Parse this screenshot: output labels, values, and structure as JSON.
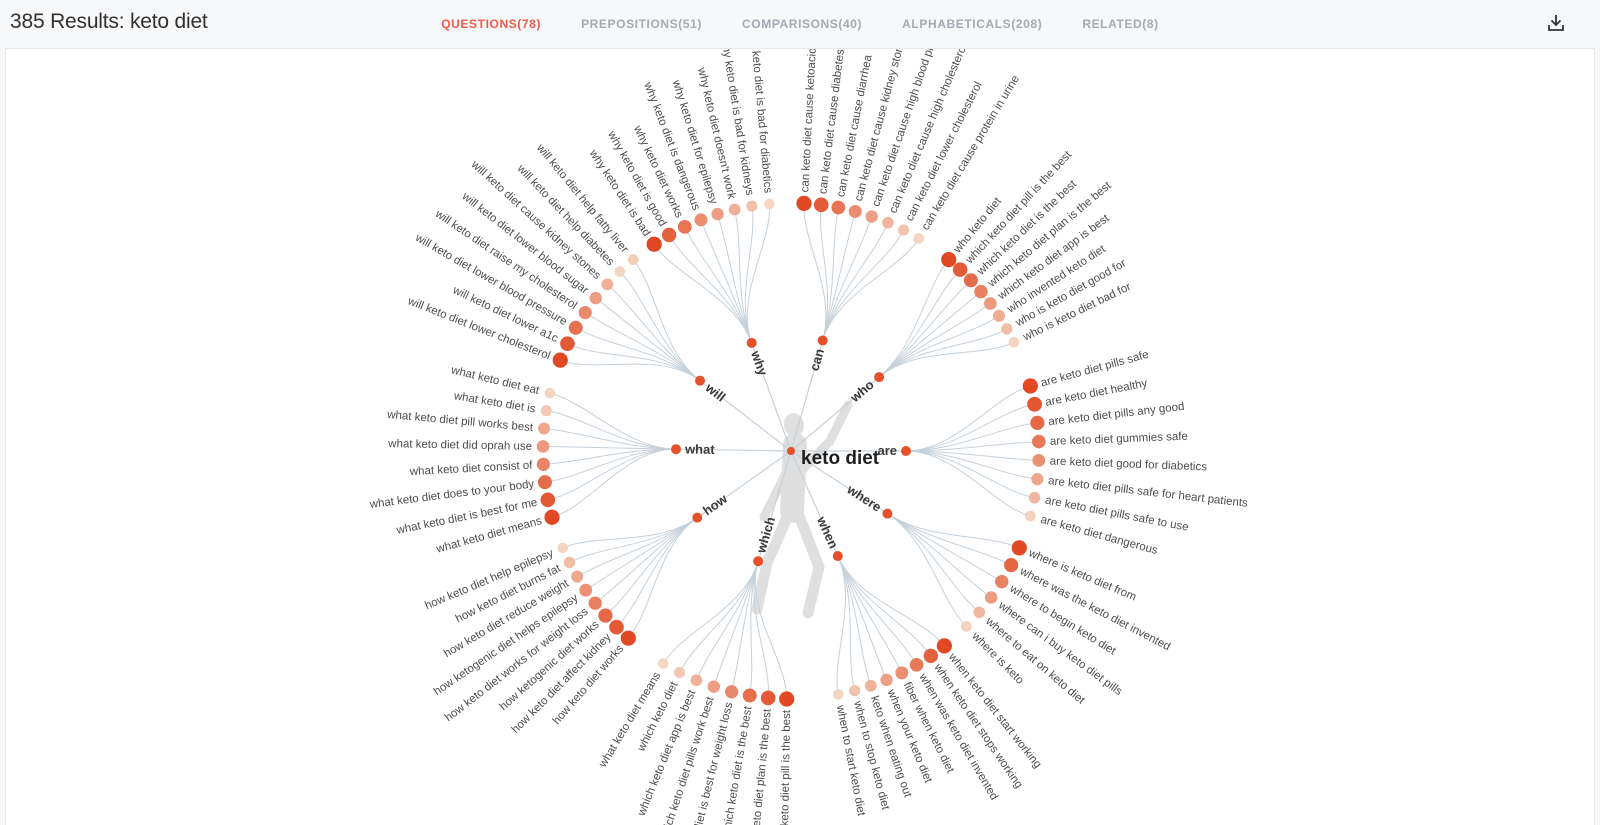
{
  "header": {
    "results_label": "385 Results:",
    "query": "keto diet",
    "tabs": [
      {
        "label": "QUESTIONS(78)",
        "active": true
      },
      {
        "label": "PREPOSITIONS(51)",
        "active": false
      },
      {
        "label": "COMPARISONS(40)",
        "active": false
      },
      {
        "label": "ALPHABETICALS(208)",
        "active": false
      },
      {
        "label": "RELATED(8)",
        "active": false
      }
    ],
    "download_icon": "download-icon"
  },
  "colors": {
    "active_tab": "#ef584a",
    "inactive_tab": "#a2aab2",
    "line": "#c5d1db",
    "dot_dark": "#e04923",
    "dot_light": "#f7e8d6",
    "node_dot": "#e5512a",
    "silhouette": "#dcdcdc"
  },
  "chart_data": {
    "type": "radial-keyword-wheel",
    "center_label": "keto diet",
    "branches": [
      {
        "label": "will",
        "angle": -142.3,
        "start": -158.5,
        "end": -129.5,
        "leaves": [
          {
            "label": "will keto diet lower cholesterol",
            "weight": 1.0
          },
          {
            "label": "will keto diet lower a1c",
            "weight": 0.9
          },
          {
            "label": "will keto diet lower blood pressure",
            "weight": 0.75
          },
          {
            "label": "will keto diet raise my cholesterol",
            "weight": 0.6
          },
          {
            "label": "will keto diet lower blood sugar",
            "weight": 0.48
          },
          {
            "label": "will keto diet cause kidney stones",
            "weight": 0.35
          },
          {
            "label": "will keto diet help diabetes",
            "weight": 0.12
          },
          {
            "label": "will keto diet help fatty liver",
            "weight": 0.16
          }
        ]
      },
      {
        "label": "why",
        "angle": -110,
        "start": -123.5,
        "end": -95,
        "leaves": [
          {
            "label": "why keto diet is bad",
            "weight": 1.0
          },
          {
            "label": "why keto diet is good",
            "weight": 0.85
          },
          {
            "label": "why keto diet works",
            "weight": 0.72
          },
          {
            "label": "why keto diet is dangerous",
            "weight": 0.58
          },
          {
            "label": "why keto diet for epilepsy",
            "weight": 0.46
          },
          {
            "label": "why keto diet doesn't work",
            "weight": 0.36
          },
          {
            "label": "why keto diet is bad for kidneys",
            "weight": 0.24
          },
          {
            "label": "why keto diet is bad for diabetics",
            "weight": 0.1
          }
        ]
      },
      {
        "label": "can",
        "angle": -74,
        "start": -87,
        "end": -59,
        "leaves": [
          {
            "label": "can keto diet cause ketoacidosis",
            "weight": 1.0
          },
          {
            "label": "can keto diet cause diabetes",
            "weight": 0.88
          },
          {
            "label": "can keto diet cause diarrhea",
            "weight": 0.72
          },
          {
            "label": "can keto diet cause kidney stones",
            "weight": 0.58
          },
          {
            "label": "can keto diet cause high blood pressure",
            "weight": 0.45
          },
          {
            "label": "can keto diet cause high cholesterol",
            "weight": 0.32
          },
          {
            "label": "can keto diet lower cholesterol",
            "weight": 0.22
          },
          {
            "label": "can keto diet cause protein in urine",
            "weight": 0.12
          }
        ]
      },
      {
        "label": "who",
        "angle": -40,
        "start": -50.5,
        "end": -26,
        "leaves": [
          {
            "label": "who keto diet",
            "weight": 1.0
          },
          {
            "label": "which keto diet pill is the best",
            "weight": 0.88
          },
          {
            "label": "which keto diet is the best",
            "weight": 0.78
          },
          {
            "label": "which keto diet plan is the best",
            "weight": 0.64
          },
          {
            "label": "which keto diet app is best",
            "weight": 0.5
          },
          {
            "label": "who invented keto diet",
            "weight": 0.38
          },
          {
            "label": "who is keto diet good for",
            "weight": 0.26
          },
          {
            "label": "who is keto diet bad for",
            "weight": 0.12
          }
        ]
      },
      {
        "label": "are",
        "angle": 0,
        "start": -15.2,
        "end": 15.2,
        "leaves": [
          {
            "label": "are keto diet pills safe",
            "weight": 1.0
          },
          {
            "label": "are keto diet healthy",
            "weight": 0.92
          },
          {
            "label": "are keto diet pills any good",
            "weight": 0.8
          },
          {
            "label": "are keto diet gummies safe",
            "weight": 0.7
          },
          {
            "label": "are keto diet good for diabetics",
            "weight": 0.55
          },
          {
            "label": "are keto diet pills safe for heart patients",
            "weight": 0.42
          },
          {
            "label": "are keto diet pills safe to use",
            "weight": 0.3
          },
          {
            "label": "are keto diet dangerous",
            "weight": 0.14
          }
        ]
      },
      {
        "label": "where",
        "angle": 33,
        "start": 23,
        "end": 45,
        "leaves": [
          {
            "label": "where is keto diet from",
            "weight": 1.0
          },
          {
            "label": "where was the keto diet invented",
            "weight": 0.82
          },
          {
            "label": "where to begin keto diet",
            "weight": 0.65
          },
          {
            "label": "where can i buy keto diet pills",
            "weight": 0.48
          },
          {
            "label": "where to eat on keto diet",
            "weight": 0.3
          },
          {
            "label": "where is keto",
            "weight": 0.14
          }
        ]
      },
      {
        "label": "when",
        "angle": 66,
        "start": 51.8,
        "end": 79,
        "leaves": [
          {
            "label": "when keto diet start working",
            "weight": 1.0
          },
          {
            "label": "when keto diet stops working",
            "weight": 0.85
          },
          {
            "label": "when was keto diet invented",
            "weight": 0.7
          },
          {
            "label": "fiber when keto diet",
            "weight": 0.56
          },
          {
            "label": "when your keto diet",
            "weight": 0.45
          },
          {
            "label": "keto when eating out",
            "weight": 0.34
          },
          {
            "label": "when to stop keto diet",
            "weight": 0.24
          },
          {
            "label": "when to start keto diet",
            "weight": 0.12
          }
        ]
      },
      {
        "label": "which",
        "angle": 106.6,
        "start": 91,
        "end": 121,
        "leaves": [
          {
            "label": "which keto diet pill is the best",
            "weight": 1.0
          },
          {
            "label": "which keto diet plan is the best",
            "weight": 0.9
          },
          {
            "label": "which keto diet is the best",
            "weight": 0.76
          },
          {
            "label": "keto diet is best for weight loss",
            "weight": 0.6
          },
          {
            "label": "which keto diet pills work best",
            "weight": 0.46
          },
          {
            "label": "which keto diet app is best",
            "weight": 0.34
          },
          {
            "label": "which keto diet",
            "weight": 0.2
          },
          {
            "label": "what keto diet means",
            "weight": 0.1
          }
        ]
      },
      {
        "label": "how",
        "angle": 144.6,
        "start": 131,
        "end": 157,
        "leaves": [
          {
            "label": "how keto diet works",
            "weight": 1.0
          },
          {
            "label": "how keto diet affect kidney",
            "weight": 0.9
          },
          {
            "label": "how ketogenic diet works",
            "weight": 0.8
          },
          {
            "label": "how keto diet works for weight loss",
            "weight": 0.66
          },
          {
            "label": "how ketogenic diet helps epilepsy",
            "weight": 0.54
          },
          {
            "label": "how keto diet reduce weight",
            "weight": 0.4
          },
          {
            "label": "how keto diet burns fat",
            "weight": 0.28
          },
          {
            "label": "how keto diet help epilepsy",
            "weight": 0.12
          }
        ]
      },
      {
        "label": "what",
        "angle": 180.9,
        "start": 164.5,
        "end": 193.5,
        "leaves": [
          {
            "label": "what keto diet means",
            "weight": 1.0
          },
          {
            "label": "what keto diet is best for me",
            "weight": 0.9
          },
          {
            "label": "what keto diet does to your body",
            "weight": 0.78
          },
          {
            "label": "what keto diet consist of",
            "weight": 0.62
          },
          {
            "label": "what keto diet did oprah use",
            "weight": 0.5
          },
          {
            "label": "what keto diet pill works best",
            "weight": 0.4
          },
          {
            "label": "what keto diet is",
            "weight": 0.2
          },
          {
            "label": "what keto diet eat",
            "weight": 0.12
          }
        ]
      }
    ]
  }
}
